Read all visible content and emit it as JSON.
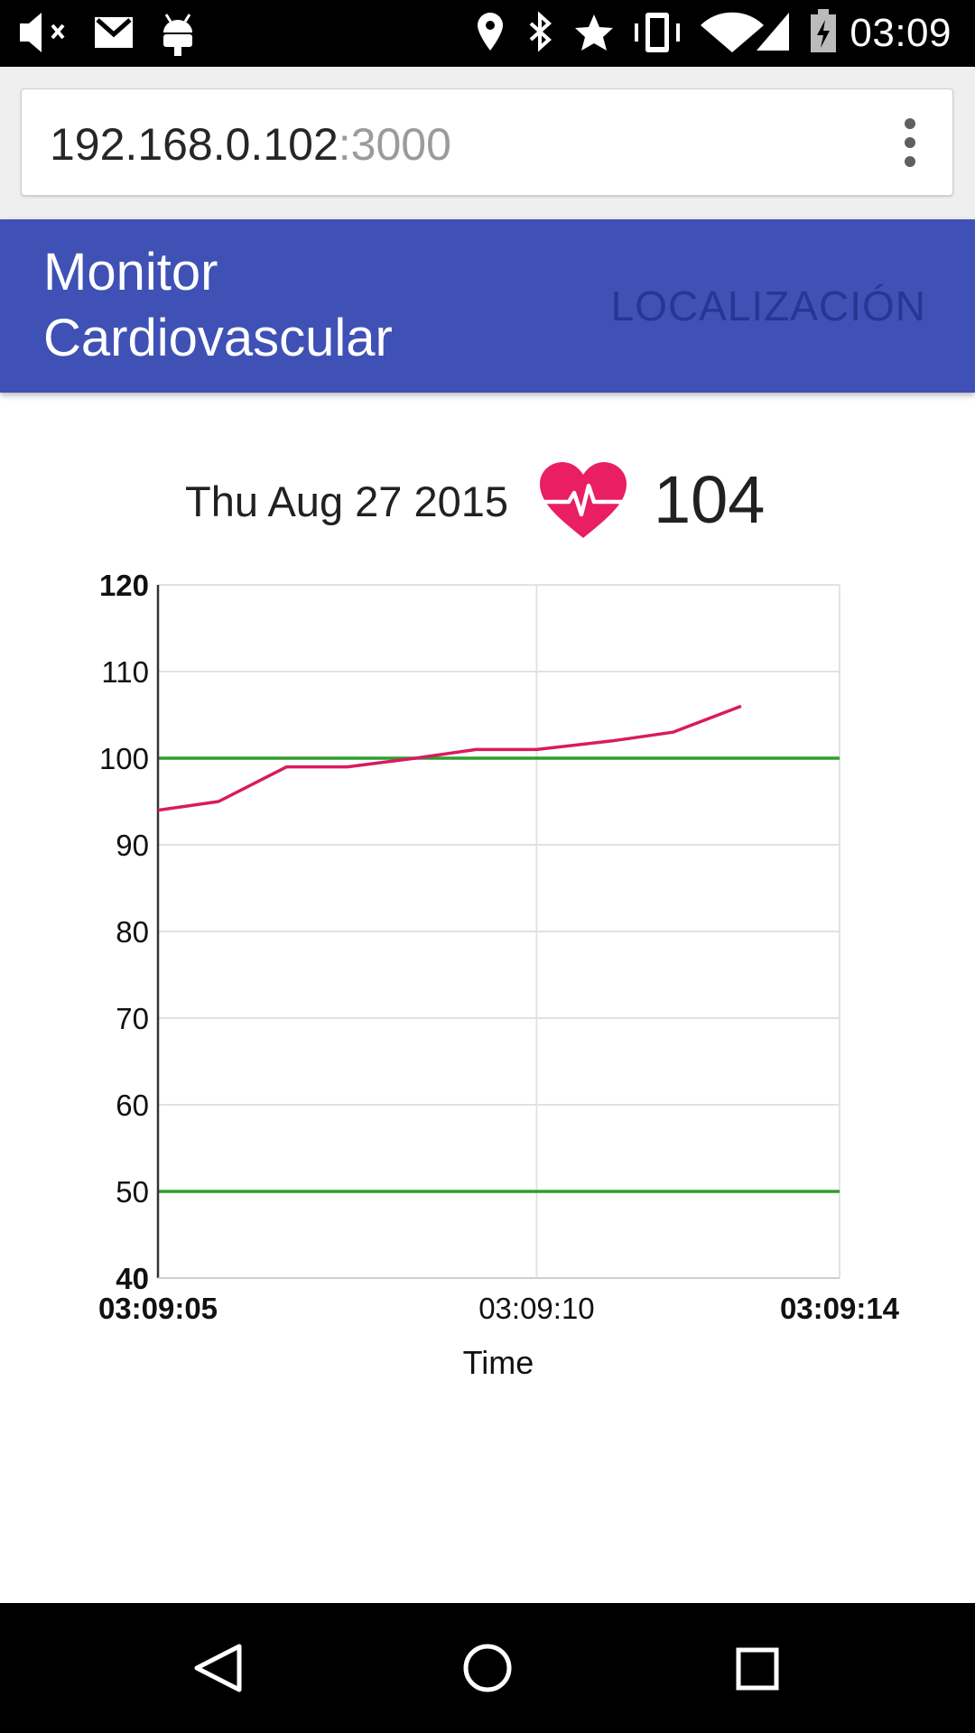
{
  "status_bar": {
    "time": "03:09",
    "icons": [
      "volume-muted-icon",
      "gmail-icon",
      "android-debug-icon",
      "location-icon",
      "bluetooth-icon",
      "star-icon",
      "vibrate-icon",
      "wifi-icon",
      "signal-icon",
      "battery-charging-icon"
    ]
  },
  "browser": {
    "url_host": "192.168.0.102",
    "url_port": ":3000",
    "menu_icon": "more-vertical-icon"
  },
  "app_bar": {
    "title_line1": "Monitor",
    "title_line2": "Cardiovascular",
    "nav_link": "LOCALIZACIÓN",
    "color": "#3f51b5"
  },
  "readout": {
    "date": "Thu Aug 27 2015",
    "heart_icon": "heart-pulse-icon",
    "bpm": "104"
  },
  "chart_data": {
    "type": "line",
    "xlabel": "Time",
    "ylabel": "",
    "x_ticks": [
      {
        "value": 0,
        "label": "03:09:05",
        "bold": true
      },
      {
        "value": 5,
        "label": "03:09:10",
        "bold": false
      },
      {
        "value": 9,
        "label": "03:09:14",
        "bold": true
      }
    ],
    "y_ticks": [
      120,
      110,
      100,
      90,
      80,
      70,
      60,
      50,
      40
    ],
    "ylim": [
      40,
      120
    ],
    "xlim": [
      0,
      9
    ],
    "grid": true,
    "series": [
      {
        "color": "#d81b60",
        "points": [
          [
            0,
            94
          ],
          [
            0.8,
            95
          ],
          [
            1.7,
            99
          ],
          [
            2.5,
            99
          ],
          [
            3.4,
            100
          ],
          [
            4.2,
            101
          ],
          [
            5,
            101
          ],
          [
            6,
            102
          ],
          [
            6.8,
            103
          ],
          [
            7.7,
            106
          ]
        ]
      }
    ],
    "reference_lines": [
      {
        "y": 100,
        "color": "#2e9e2e"
      },
      {
        "y": 50,
        "color": "#2e9e2e"
      }
    ]
  },
  "nav_bar": {
    "buttons": [
      "back-icon",
      "home-icon",
      "recents-icon"
    ]
  }
}
